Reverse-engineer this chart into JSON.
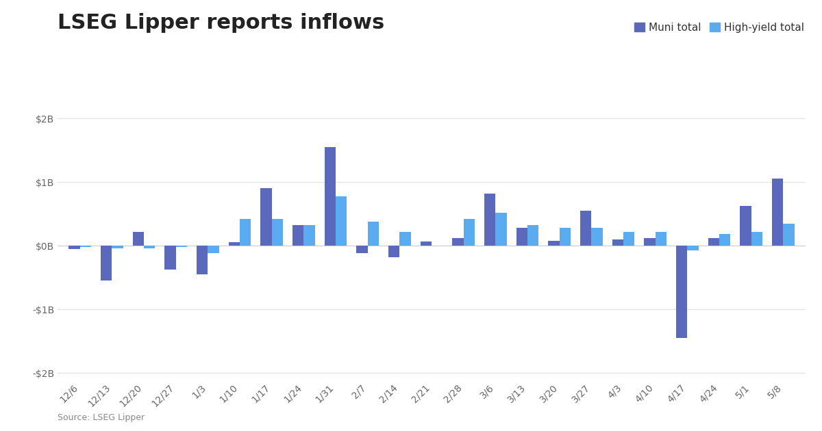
{
  "title": "LSEG Lipper reports inflows",
  "source": "Source: LSEG Lipper",
  "legend_labels": [
    "Muni total",
    "High-yield total"
  ],
  "muni_color": "#5b69bc",
  "hy_color": "#5aabf0",
  "background_color": "#ffffff",
  "categories": [
    "12/6",
    "12/13",
    "12/20",
    "12/27",
    "1/3",
    "1/10",
    "1/17",
    "1/24",
    "1/31",
    "2/7",
    "2/14",
    "2/21",
    "2/28",
    "3/6",
    "3/13",
    "3/20",
    "3/27",
    "4/3",
    "4/10",
    "4/17",
    "4/24",
    "5/1",
    "5/8"
  ],
  "muni_values": [
    -0.05,
    -0.55,
    0.22,
    -0.38,
    -0.45,
    0.05,
    0.9,
    0.32,
    1.55,
    -0.12,
    -0.18,
    0.07,
    0.12,
    0.82,
    0.28,
    0.08,
    0.55,
    0.1,
    0.12,
    -1.45,
    0.12,
    0.62,
    1.05
  ],
  "hy_values": [
    -0.02,
    -0.04,
    -0.04,
    -0.02,
    -0.12,
    0.42,
    0.42,
    0.32,
    0.78,
    0.38,
    0.22,
    0.0,
    0.42,
    0.52,
    0.32,
    0.28,
    0.28,
    0.22,
    0.22,
    -0.07,
    0.18,
    0.22,
    0.35
  ],
  "ylim": [
    -2.1,
    2.1
  ],
  "yticks": [
    -2,
    -1,
    0,
    1,
    2
  ],
  "ytick_labels": [
    "-$2B",
    "-$1B",
    "$0B",
    "$1B",
    "$2B"
  ],
  "bar_width": 0.35,
  "grid_color": "#e0e0e0",
  "title_fontsize": 22,
  "tick_fontsize": 10,
  "legend_fontsize": 11,
  "tick_color": "#666666"
}
